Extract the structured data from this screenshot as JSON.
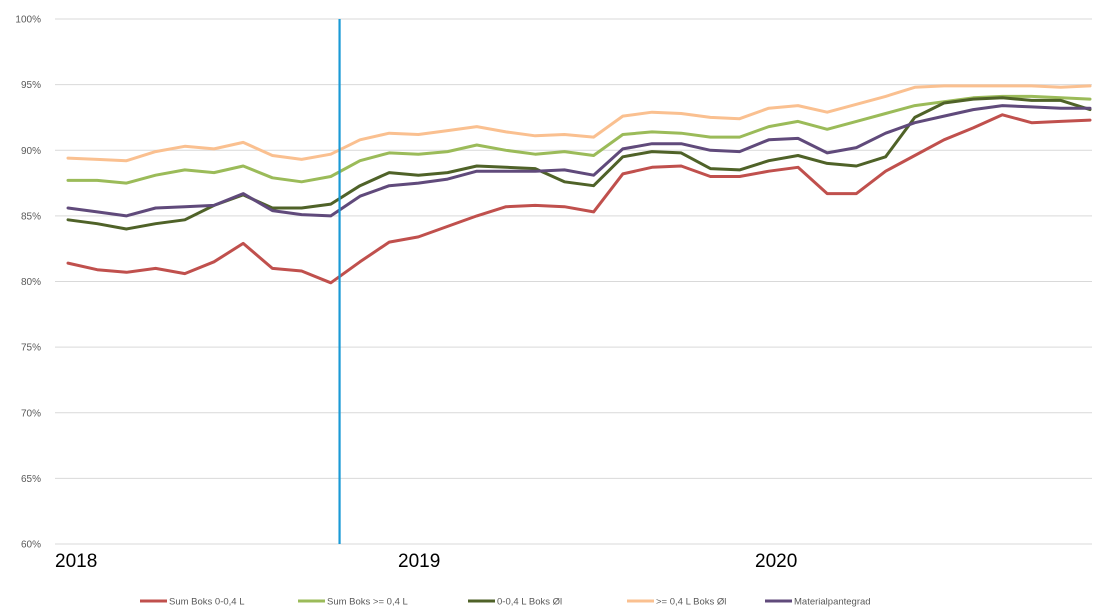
{
  "chart_data": {
    "type": "line",
    "title": "",
    "xlabel": "",
    "ylabel": "",
    "ylim": [
      60,
      100
    ],
    "y_ticks": [
      "60%",
      "65%",
      "70%",
      "75%",
      "80%",
      "85%",
      "90%",
      "95%",
      "100%"
    ],
    "x_labels": [
      "2018",
      "2019",
      "2020"
    ],
    "grid": "horizontal",
    "legend_position": "bottom",
    "marker_line": {
      "at_point": 9.3,
      "color": "#1a9ad6"
    },
    "series": [
      {
        "name": "Sum Boks 0-0,4 L",
        "color": "#c0504d",
        "values": [
          81.4,
          80.9,
          80.7,
          81.0,
          80.6,
          81.5,
          82.9,
          81.0,
          80.8,
          79.9,
          81.5,
          83.0,
          83.4,
          84.2,
          85.0,
          85.7,
          85.8,
          85.7,
          85.3,
          88.2,
          88.7,
          88.8,
          88.0,
          88.0,
          88.4,
          88.7,
          86.7,
          86.7,
          88.4,
          89.6,
          90.8,
          91.7,
          92.7,
          92.1,
          92.2,
          92.3
        ]
      },
      {
        "name": "Sum Boks >= 0,4 L",
        "color": "#9bbb59",
        "values": [
          87.7,
          87.7,
          87.5,
          88.1,
          88.5,
          88.3,
          88.8,
          87.9,
          87.6,
          88.0,
          89.2,
          89.8,
          89.7,
          89.9,
          90.4,
          90.0,
          89.7,
          89.9,
          89.6,
          91.2,
          91.4,
          91.3,
          91.0,
          91.0,
          91.8,
          92.2,
          91.6,
          92.2,
          92.8,
          93.4,
          93.7,
          94.0,
          94.1,
          94.1,
          94.0,
          93.9
        ]
      },
      {
        "name": "0-0,4 L Boks Øl",
        "color": "#4f6228",
        "values": [
          84.7,
          84.4,
          84.0,
          84.4,
          84.7,
          85.8,
          86.6,
          85.6,
          85.6,
          85.9,
          87.3,
          88.3,
          88.1,
          88.3,
          88.8,
          88.7,
          88.6,
          87.6,
          87.3,
          89.5,
          89.9,
          89.8,
          88.6,
          88.5,
          89.2,
          89.6,
          89.0,
          88.8,
          89.5,
          92.5,
          93.6,
          93.9,
          94.0,
          93.8,
          93.8,
          93.1
        ]
      },
      {
        "name": ">= 0,4 L Boks Øl",
        "color": "#fac090",
        "values": [
          89.4,
          89.3,
          89.2,
          89.9,
          90.3,
          90.1,
          90.6,
          89.6,
          89.3,
          89.7,
          90.8,
          91.3,
          91.2,
          91.5,
          91.8,
          91.4,
          91.1,
          91.2,
          91.0,
          92.6,
          92.9,
          92.8,
          92.5,
          92.4,
          93.2,
          93.4,
          92.9,
          93.5,
          94.1,
          94.8,
          94.9,
          94.9,
          94.9,
          94.9,
          94.8,
          94.9
        ]
      },
      {
        "name": "Materialpantegrad",
        "color": "#604a7b",
        "values": [
          85.6,
          85.3,
          85.0,
          85.6,
          85.7,
          85.8,
          86.7,
          85.4,
          85.1,
          85.0,
          86.5,
          87.3,
          87.5,
          87.8,
          88.4,
          88.4,
          88.4,
          88.5,
          88.1,
          90.1,
          90.5,
          90.5,
          90.0,
          89.9,
          90.8,
          90.9,
          89.8,
          90.2,
          91.3,
          92.1,
          92.6,
          93.1,
          93.4,
          93.3,
          93.2,
          93.2
        ]
      }
    ]
  }
}
